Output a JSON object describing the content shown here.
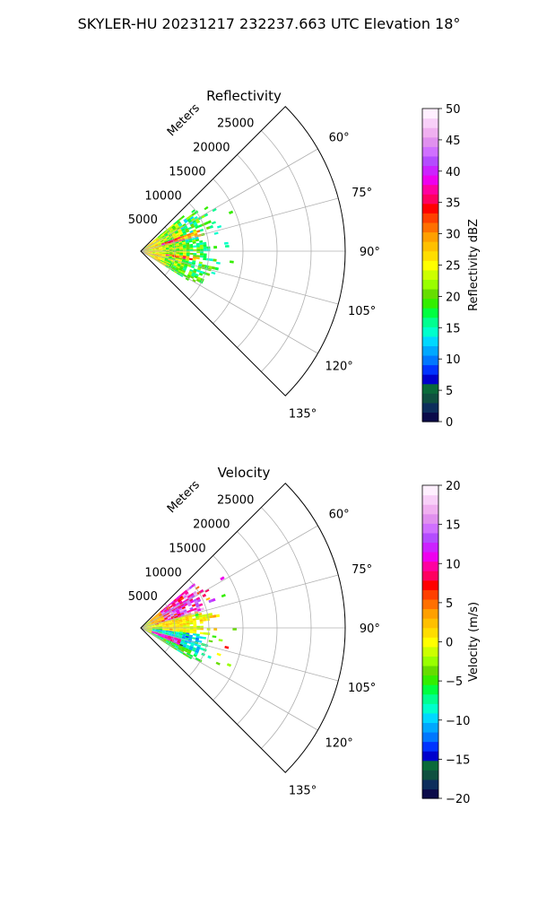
{
  "figure": {
    "suptitle": "SKYLER-HU  20231217  232237.663 UTC Elevation 18°"
  },
  "chart_data": [
    {
      "type": "heatmap",
      "subtype": "polar-sector (PPI radar sweep)",
      "title": "Reflectivity",
      "range_label": "Meters",
      "range_ticks": [
        "5000",
        "10000",
        "15000",
        "20000",
        "25000"
      ],
      "range_tick_values": [
        5000,
        10000,
        15000,
        20000,
        25000
      ],
      "azimuth_ticks": [
        "60°",
        "75°",
        "90°",
        "105°",
        "120°",
        "135°"
      ],
      "azimuth_tick_values": [
        60,
        75,
        90,
        105,
        120,
        135
      ],
      "azimuth_range": [
        45,
        135
      ],
      "range_max": 30000,
      "grid": true,
      "colorbar": {
        "label": "Reflectivity dBZ",
        "min": 0,
        "max": 50,
        "ticks": [
          "0",
          "5",
          "10",
          "15",
          "20",
          "25",
          "30",
          "35",
          "40",
          "45",
          "50"
        ],
        "colors": [
          "#0b0b4a",
          "#0d2e5c",
          "#0f5040",
          "#0a6a3a",
          "#0000cc",
          "#0033ff",
          "#0077ff",
          "#00a8ff",
          "#00d8ff",
          "#00ffcc",
          "#00ff90",
          "#00ff40",
          "#33ee00",
          "#66dd00",
          "#99ff00",
          "#ccff00",
          "#ffff00",
          "#ffdd00",
          "#ffc000",
          "#ffa000",
          "#ff7000",
          "#ff4000",
          "#ff0000",
          "#ff0060",
          "#ff00a0",
          "#ee00ee",
          "#cc22ff",
          "#b44cff",
          "#d070ff",
          "#e090ee",
          "#f0b0f0",
          "#f8d0f8",
          "#fff0ff"
        ]
      },
      "echo_region": {
        "az_min": 50,
        "az_max": 122,
        "r_max_typical": 9500
      },
      "dominant_values": {
        "core": 25,
        "mid": 18,
        "edge": 12
      }
    },
    {
      "type": "heatmap",
      "subtype": "polar-sector (PPI radar sweep)",
      "title": "Velocity",
      "range_label": "Meters",
      "range_ticks": [
        "5000",
        "10000",
        "15000",
        "20000",
        "25000"
      ],
      "range_tick_values": [
        5000,
        10000,
        15000,
        20000,
        25000
      ],
      "azimuth_ticks": [
        "60°",
        "75°",
        "90°",
        "105°",
        "120°",
        "135°"
      ],
      "azimuth_tick_values": [
        60,
        75,
        90,
        105,
        120,
        135
      ],
      "azimuth_range": [
        45,
        135
      ],
      "range_max": 30000,
      "grid": true,
      "colorbar": {
        "label": "Velocity (m/s)",
        "min": -20,
        "max": 20,
        "ticks": [
          "−20",
          "−15",
          "−10",
          "−5",
          "0",
          "5",
          "10",
          "15",
          "20"
        ],
        "colors": [
          "#0b0b4a",
          "#0d2e5c",
          "#0f5040",
          "#0a6a3a",
          "#0000cc",
          "#0033ff",
          "#0077ff",
          "#00a8ff",
          "#00d8ff",
          "#00ffcc",
          "#00ff90",
          "#00ff40",
          "#33ee00",
          "#66dd00",
          "#99ff00",
          "#ccff00",
          "#ffff00",
          "#ffdd00",
          "#ffc000",
          "#ffa000",
          "#ff7000",
          "#ff4000",
          "#ff0000",
          "#ff0060",
          "#ff00a0",
          "#ee00ee",
          "#cc22ff",
          "#b44cff",
          "#d070ff",
          "#e090ee",
          "#f0b0f0",
          "#f8d0f8",
          "#fff0ff"
        ]
      },
      "echo_region": {
        "az_min": 50,
        "az_max": 122,
        "r_max_typical": 9500
      },
      "dominant_values": {
        "north_sector": 12,
        "center": 0,
        "south_sector": -10,
        "south_core": 10
      }
    }
  ]
}
